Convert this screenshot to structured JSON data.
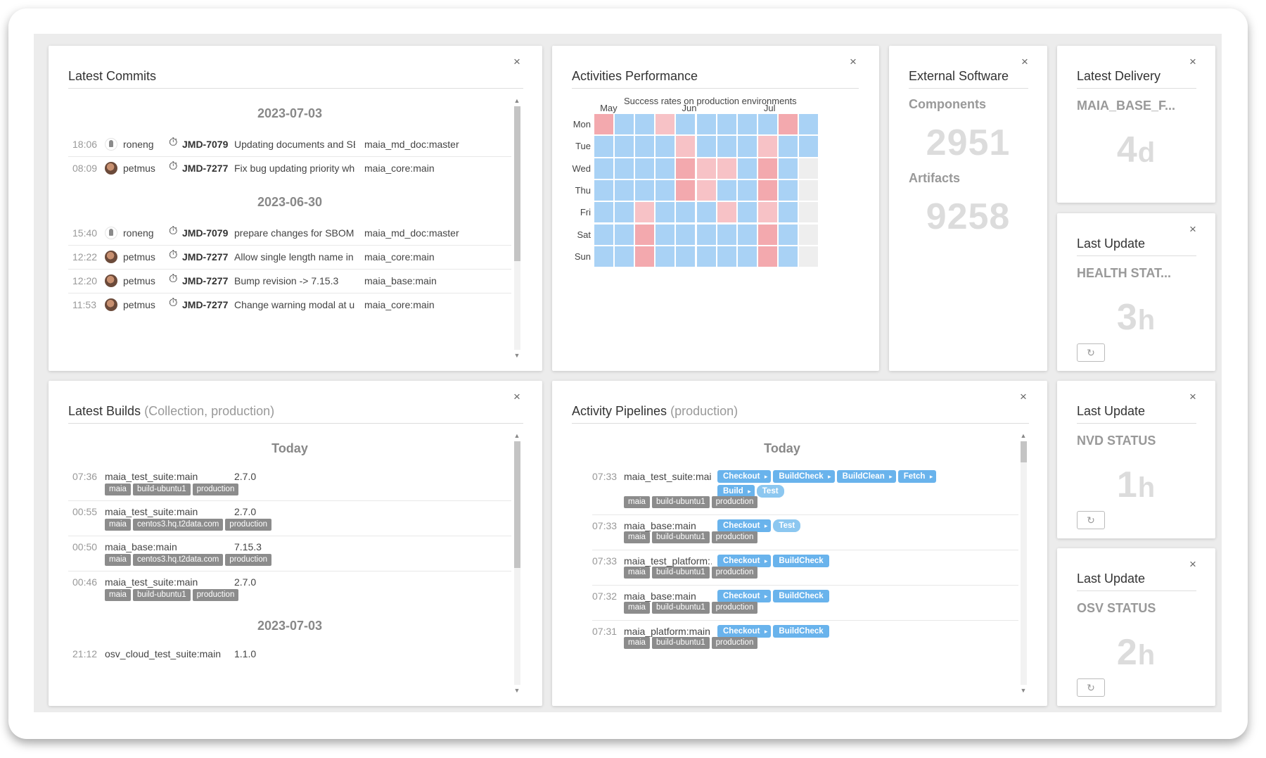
{
  "commits": {
    "title": "Latest Commits",
    "close": "×",
    "groups": [
      {
        "date": "2023-07-03",
        "rows": [
          {
            "time": "18:06",
            "user": "roneng",
            "ticket": "JMD-7079",
            "message": "Updating documents and SB...",
            "repo": "maia_md_doc:master"
          },
          {
            "time": "08:09",
            "user": "petmus",
            "ticket": "JMD-7277",
            "message": "Fix bug updating priority whe...",
            "repo": "maia_core:main"
          }
        ]
      },
      {
        "date": "2023-06-30",
        "rows": [
          {
            "time": "15:40",
            "user": "roneng",
            "ticket": "JMD-7079",
            "message": "prepare changes for SBOM C...",
            "repo": "maia_md_doc:master"
          },
          {
            "time": "12:22",
            "user": "petmus",
            "ticket": "JMD-7277",
            "message": "Allow single length name in s...",
            "repo": "maia_core:main"
          },
          {
            "time": "12:20",
            "user": "petmus",
            "ticket": "JMD-7277",
            "message": "Bump revision -> 7.15.3",
            "repo": "maia_base:main"
          },
          {
            "time": "11:53",
            "user": "petmus",
            "ticket": "JMD-7277",
            "message": "Change warning modal at up...",
            "repo": "maia_core:main"
          }
        ]
      }
    ]
  },
  "activities": {
    "title": "Activities Performance",
    "close": "×",
    "subtitle": "Success rates on production environments",
    "months": [
      {
        "label": "May",
        "col": 1
      },
      {
        "label": "Jun",
        "col": 5
      },
      {
        "label": "Jul",
        "col": 9
      }
    ],
    "days": [
      "Mon",
      "Tue",
      "Wed",
      "Thu",
      "Fri",
      "Sat",
      "Sun"
    ],
    "colors": {
      "r": "#f3a9ae",
      "p": "#f7c2c6",
      "b": "#a9d2f5",
      "g": "#eeeeee"
    },
    "grid": [
      "rbbpbbbbbrb",
      "bbbbpbbbpbb",
      "bbbbrppbrbg",
      "bbbbrpbbrbg",
      "bbpbbbpbpbg",
      "bbrbbbbbrbg",
      "bbrbbbbbrbg"
    ]
  },
  "external": {
    "title": "External Software",
    "close": "×",
    "components_label": "Components",
    "components_value": "2951",
    "artifacts_label": "Artifacts",
    "artifacts_value": "9258"
  },
  "latest_delivery": {
    "title": "Latest Delivery",
    "close": "×",
    "label": "MAIA_BASE_F...",
    "value": "4",
    "unit": "d"
  },
  "health": {
    "title": "Last Update",
    "close": "×",
    "label": "HEALTH STAT...",
    "value": "3",
    "unit": "h",
    "refresh_icon": "↻"
  },
  "nvd": {
    "title": "Last Update",
    "close": "×",
    "label": "NVD STATUS",
    "value": "1",
    "unit": "h",
    "refresh_icon": "↻"
  },
  "osv": {
    "title": "Last Update",
    "close": "×",
    "label": "OSV STATUS",
    "value": "2",
    "unit": "h",
    "refresh_icon": "↻"
  },
  "builds": {
    "title": "Latest Builds",
    "subtitle": "(Collection, production)",
    "close": "×",
    "groups": [
      {
        "date": "Today",
        "rows": [
          {
            "time": "07:36",
            "name": "maia_test_suite:main",
            "version": "2.7.0",
            "tags": [
              "maia",
              "build-ubuntu1",
              "production"
            ]
          },
          {
            "time": "00:55",
            "name": "maia_test_suite:main",
            "version": "2.7.0",
            "tags": [
              "maia",
              "centos3.hq.t2data.com",
              "production"
            ]
          },
          {
            "time": "00:50",
            "name": "maia_base:main",
            "version": "7.15.3",
            "tags": [
              "maia",
              "centos3.hq.t2data.com",
              "production"
            ]
          },
          {
            "time": "00:46",
            "name": "maia_test_suite:main",
            "version": "2.7.0",
            "tags": [
              "maia",
              "build-ubuntu1",
              "production"
            ]
          }
        ]
      },
      {
        "date": "2023-07-03",
        "rows": [
          {
            "time": "21:12",
            "name": "osv_cloud_test_suite:main",
            "version": "1.1.0",
            "tags": []
          }
        ]
      }
    ]
  },
  "pipelines": {
    "title": "Activity Pipelines",
    "subtitle": "(production)",
    "close": "×",
    "date": "Today",
    "rows": [
      {
        "time": "07:33",
        "name": "maia_test_suite:main",
        "steps": [
          "Checkout",
          "BuildCheck",
          "BuildClean",
          "Fetch",
          "Build",
          "Test"
        ],
        "tags": [
          "maia",
          "build-ubuntu1",
          "production"
        ]
      },
      {
        "time": "07:33",
        "name": "maia_base:main",
        "steps": [
          "Checkout",
          "Test"
        ],
        "tags": [
          "maia",
          "build-ubuntu1",
          "production"
        ]
      },
      {
        "time": "07:33",
        "name": "maia_test_platform:...",
        "steps": [
          "Checkout",
          "BuildCheck"
        ],
        "tags": [
          "maia",
          "build-ubuntu1",
          "production"
        ]
      },
      {
        "time": "07:32",
        "name": "maia_base:main",
        "steps": [
          "Checkout",
          "BuildCheck"
        ],
        "tags": [
          "maia",
          "build-ubuntu1",
          "production"
        ]
      },
      {
        "time": "07:31",
        "name": "maia_platform:main",
        "steps": [
          "Checkout",
          "BuildCheck"
        ],
        "tags": [
          "maia",
          "build-ubuntu1",
          "production"
        ]
      }
    ]
  }
}
